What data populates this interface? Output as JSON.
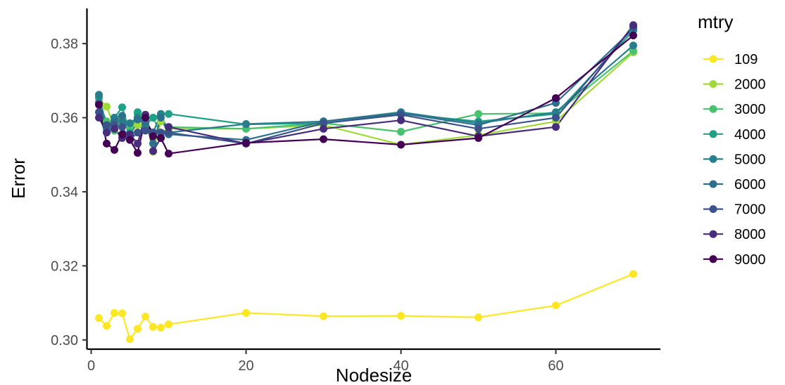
{
  "chart_data": {
    "type": "line",
    "xlabel": "Nodesize",
    "ylabel": "Error",
    "legend_title": "mtry",
    "legend_position": "right",
    "grid": false,
    "xlim": [
      -0.5,
      73.5
    ],
    "ylim": [
      0.2975,
      0.3895
    ],
    "x_ticks": [
      0,
      20,
      40,
      60
    ],
    "x_tick_labels": [
      "0",
      "20",
      "40",
      "60"
    ],
    "y_ticks": [
      0.3,
      0.32,
      0.34,
      0.36,
      0.38
    ],
    "y_tick_labels": [
      "0.30",
      "0.32",
      "0.34",
      "0.36",
      "0.38"
    ],
    "x": [
      1,
      2,
      3,
      4,
      5,
      6,
      7,
      8,
      9,
      10,
      20,
      30,
      40,
      50,
      60,
      70
    ],
    "series": [
      {
        "name": "109",
        "color": "#FDE725",
        "values": [
          0.3059,
          0.3038,
          0.3073,
          0.3072,
          0.3002,
          0.303,
          0.3063,
          0.3035,
          0.3033,
          0.3042,
          0.3073,
          0.3064,
          0.3065,
          0.3061,
          0.3093,
          0.3178
        ]
      },
      {
        "name": "2000",
        "color": "#A0DA39",
        "values": [
          0.365,
          0.363,
          0.3575,
          0.3605,
          0.356,
          0.358,
          0.36,
          0.3508,
          0.359,
          0.357,
          0.357,
          0.358,
          0.3527,
          0.3553,
          0.359,
          0.3776
        ]
      },
      {
        "name": "3000",
        "color": "#4AC16D",
        "values": [
          0.364,
          0.359,
          0.3565,
          0.36,
          0.3575,
          0.361,
          0.3595,
          0.36,
          0.3555,
          0.3575,
          0.357,
          0.3585,
          0.3562,
          0.361,
          0.3612,
          0.378
        ]
      },
      {
        "name": "4000",
        "color": "#1FA187",
        "values": [
          0.3655,
          0.358,
          0.36,
          0.3628,
          0.356,
          0.3615,
          0.358,
          0.36,
          0.361,
          0.361,
          0.3582,
          0.3585,
          0.361,
          0.359,
          0.361,
          0.3835
        ]
      },
      {
        "name": "5000",
        "color": "#277F8E",
        "values": [
          0.3662,
          0.357,
          0.36,
          0.359,
          0.3585,
          0.36,
          0.359,
          0.356,
          0.361,
          0.356,
          0.3583,
          0.359,
          0.3615,
          0.3585,
          0.3615,
          0.3795
        ]
      },
      {
        "name": "6000",
        "color": "#2E6F8E",
        "values": [
          0.364,
          0.356,
          0.359,
          0.3605,
          0.355,
          0.3595,
          0.3585,
          0.353,
          0.36,
          0.3555,
          0.354,
          0.359,
          0.3612,
          0.358,
          0.364,
          0.384
        ]
      },
      {
        "name": "7000",
        "color": "#3B528B",
        "values": [
          0.3615,
          0.358,
          0.358,
          0.3575,
          0.354,
          0.356,
          0.3565,
          0.356,
          0.356,
          0.356,
          0.353,
          0.3585,
          0.3608,
          0.357,
          0.36,
          0.3845
        ]
      },
      {
        "name": "8000",
        "color": "#472D7B",
        "values": [
          0.36,
          0.356,
          0.357,
          0.3545,
          0.3555,
          0.353,
          0.3608,
          0.351,
          0.3545,
          0.3575,
          0.353,
          0.357,
          0.3593,
          0.355,
          0.3575,
          0.385
        ]
      },
      {
        "name": "9000",
        "color": "#440154",
        "values": [
          0.3635,
          0.353,
          0.3513,
          0.3555,
          0.354,
          0.3505,
          0.36,
          0.355,
          0.3545,
          0.3503,
          0.3532,
          0.3542,
          0.3527,
          0.3545,
          0.3653,
          0.3822
        ]
      }
    ]
  }
}
